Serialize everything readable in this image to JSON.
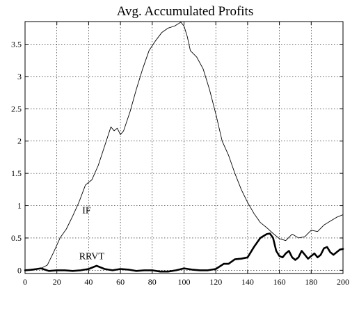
{
  "chart_data": {
    "type": "line",
    "title": "Avg. Accumulated Profits",
    "xlabel": "",
    "ylabel": "",
    "xlim": [
      0,
      200
    ],
    "ylim": [
      -0.05,
      3.85
    ],
    "x_ticks": [
      0,
      20,
      40,
      60,
      80,
      100,
      120,
      140,
      160,
      180,
      200
    ],
    "y_ticks": [
      0,
      0.5,
      1,
      1.5,
      2,
      2.5,
      3,
      3.5
    ],
    "y_tick_labels": [
      "0",
      "0.5",
      "1",
      "1.5",
      "2",
      "2.5",
      "3",
      "3.5"
    ],
    "grid": true,
    "annotations": [
      {
        "text": "IF",
        "x": 36,
        "y": 0.88
      },
      {
        "text": "RRVT",
        "x": 34,
        "y": 0.17
      }
    ],
    "series": [
      {
        "name": "IF",
        "style": "thin",
        "color": "#000000",
        "x": [
          0,
          5,
          10,
          14,
          18,
          22,
          26,
          30,
          34,
          38,
          42,
          46,
          50,
          54,
          56,
          58,
          60,
          62,
          66,
          70,
          74,
          78,
          82,
          86,
          90,
          94,
          98,
          100,
          102,
          104,
          108,
          112,
          116,
          120,
          124,
          128,
          132,
          136,
          140,
          144,
          148,
          152,
          156,
          160,
          164,
          168,
          172,
          176,
          180,
          184,
          188,
          192,
          196,
          200
        ],
        "y": [
          0.0,
          0.02,
          0.03,
          0.08,
          0.28,
          0.5,
          0.64,
          0.84,
          1.06,
          1.32,
          1.4,
          1.62,
          1.92,
          2.22,
          2.16,
          2.2,
          2.1,
          2.16,
          2.45,
          2.8,
          3.12,
          3.4,
          3.55,
          3.68,
          3.75,
          3.78,
          3.84,
          3.78,
          3.62,
          3.4,
          3.3,
          3.12,
          2.8,
          2.42,
          2.0,
          1.78,
          1.5,
          1.25,
          1.05,
          0.88,
          0.74,
          0.66,
          0.57,
          0.49,
          0.46,
          0.56,
          0.5,
          0.52,
          0.62,
          0.6,
          0.7,
          0.76,
          0.82,
          0.86
        ]
      },
      {
        "name": "RRVT",
        "style": "thick",
        "color": "#000000",
        "x": [
          0,
          5,
          10,
          15,
          20,
          25,
          30,
          35,
          40,
          45,
          50,
          55,
          60,
          65,
          70,
          75,
          80,
          85,
          90,
          95,
          100,
          105,
          110,
          115,
          120,
          125,
          128,
          132,
          136,
          140,
          144,
          148,
          152,
          154,
          156,
          158,
          160,
          162,
          164,
          166,
          168,
          170,
          172,
          174,
          176,
          178,
          180,
          182,
          184,
          186,
          188,
          190,
          192,
          194,
          196,
          198,
          200
        ],
        "y": [
          0.0,
          0.01,
          0.03,
          -0.01,
          0.0,
          0.0,
          -0.01,
          0.0,
          0.02,
          0.07,
          0.02,
          0.0,
          0.02,
          0.01,
          -0.01,
          0.0,
          0.0,
          -0.02,
          -0.02,
          0.0,
          0.03,
          0.01,
          0.0,
          0.0,
          0.02,
          0.1,
          0.1,
          0.17,
          0.18,
          0.2,
          0.36,
          0.5,
          0.56,
          0.57,
          0.5,
          0.3,
          0.22,
          0.2,
          0.26,
          0.3,
          0.2,
          0.16,
          0.2,
          0.3,
          0.24,
          0.18,
          0.22,
          0.26,
          0.2,
          0.24,
          0.34,
          0.36,
          0.28,
          0.24,
          0.28,
          0.32,
          0.33
        ]
      }
    ]
  }
}
